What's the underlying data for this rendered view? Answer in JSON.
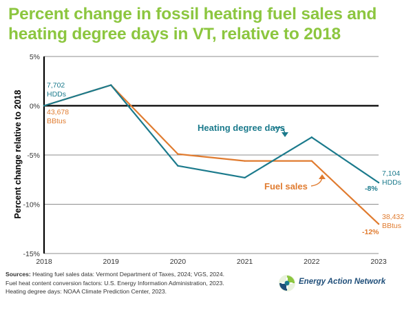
{
  "title": "Percent change in fossil heating fuel sales and heating degree days in VT, relative to 2018",
  "colors": {
    "title": "#8cc63f",
    "hdd": "#1b7a8c",
    "fuel": "#e07b2f",
    "axis": "#000000",
    "grid": "#666666",
    "logo_text": "#1f4e79"
  },
  "chart_data": {
    "type": "line",
    "title": "Percent change in fossil heating fuel sales and heating degree days in VT, relative to 2018",
    "xlabel": "",
    "ylabel": "Percent change relative to 2018",
    "x": [
      "2018",
      "2019",
      "2020",
      "2021",
      "2022",
      "2023"
    ],
    "y_ticks": [
      "5%",
      "0%",
      "-5%",
      "-10%",
      "-15%"
    ],
    "y_tick_values": [
      5,
      0,
      -5,
      -10,
      -15
    ],
    "ylim": [
      -15,
      5
    ],
    "grid": true,
    "series": [
      {
        "key": "hdd",
        "name": "Heating degree days",
        "values": [
          0,
          2.1,
          -6.1,
          -7.3,
          -3.2,
          -7.8
        ]
      },
      {
        "key": "fuel",
        "name": "Fuel sales",
        "values": [
          0,
          2.1,
          -4.9,
          -5.6,
          -5.6,
          -12.0
        ]
      }
    ],
    "annotations": {
      "hdd_start_value": "7,702",
      "hdd_start_unit": "HDDs",
      "fuel_start_value": "43,678",
      "fuel_start_unit": "BBtus",
      "hdd_end_value": "7,104",
      "hdd_end_unit": "HDDs",
      "hdd_end_pct": "-8%",
      "fuel_end_value": "38,432",
      "fuel_end_unit": "BBtus",
      "fuel_end_pct": "-12%"
    }
  },
  "sources": {
    "label": "Sources:",
    "line1": "Heating fuel sales data: Vermont Department of Taxes, 2024; VGS, 2024.",
    "line2": "Fuel heat content conversion factors: U.S. Energy Information Administration, 2023.",
    "line3": "Heating degree days: NOAA Climate Prediction Center, 2023."
  },
  "logo": {
    "text": "Energy Action Network"
  }
}
